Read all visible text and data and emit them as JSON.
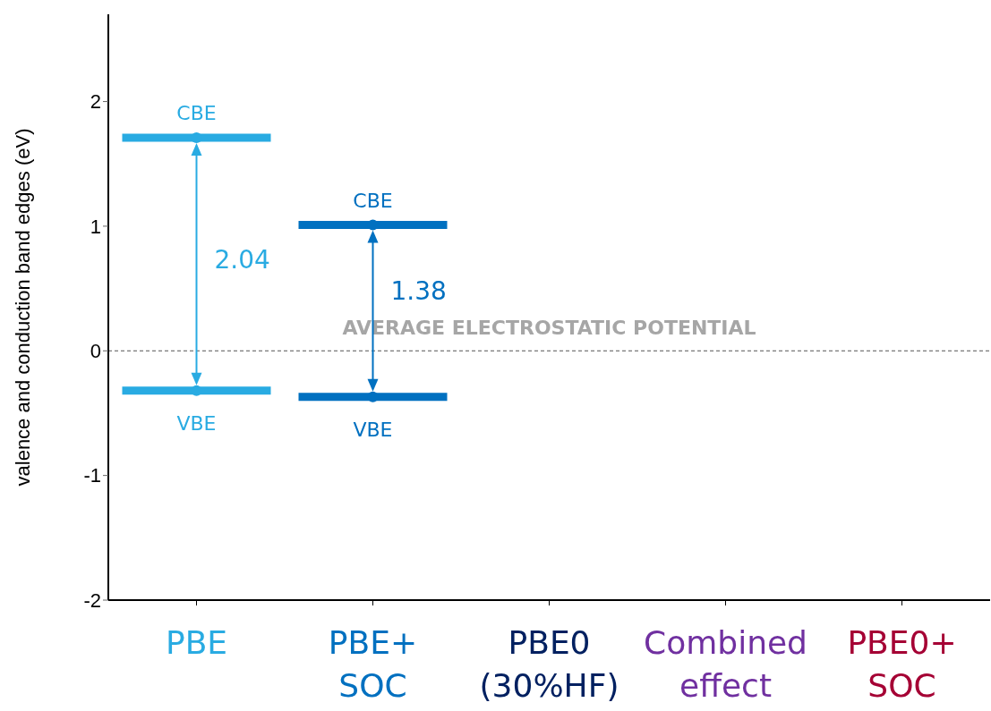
{
  "chart_data": {
    "type": "scatter",
    "ylabel": "valence and conduction band edges (eV)",
    "categories": [
      "PBE",
      "PBE+\nSOC",
      "PBE0\n(30%HF)",
      "Combined\neffect",
      "PBE0+\nSOC"
    ],
    "series": [
      {
        "name": "CBE",
        "values": [
          1.71,
          1.01,
          null,
          null,
          null
        ],
        "colors": [
          "#29abe2",
          "#0070c0",
          "#002060",
          "#7030a0",
          "#a50034"
        ]
      },
      {
        "name": "VBE",
        "values": [
          -0.32,
          -0.37,
          null,
          null,
          null
        ],
        "colors": [
          "#29abe2",
          "#0070c0",
          "#002060",
          "#7030a0",
          "#a50034"
        ]
      }
    ],
    "ylim": [
      -2,
      2.7
    ],
    "yticks": [
      -2,
      -1,
      0,
      1,
      2
    ],
    "grid": false,
    "legend": false,
    "ref_lines": [
      {
        "axis": "y",
        "value": 0,
        "label": "AVERAGE ELECTROSTATIC POTENTIAL",
        "color": "#555555",
        "line_style": "dashed"
      }
    ],
    "annotations": [
      "2.04",
      "1.38"
    ]
  }
}
